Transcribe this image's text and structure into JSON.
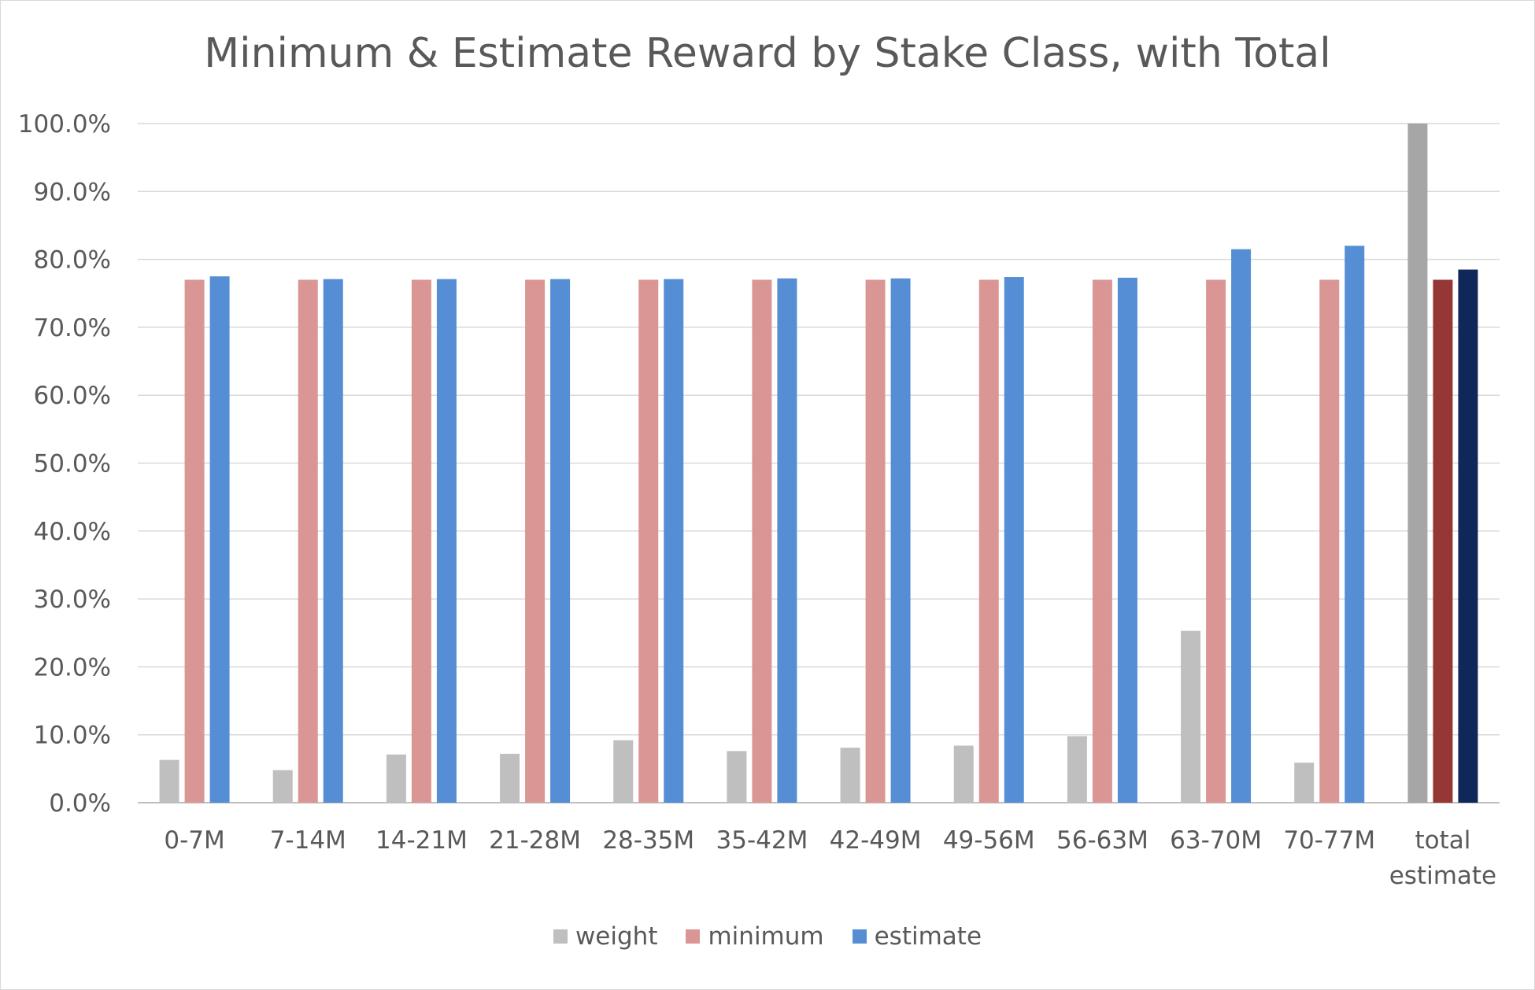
{
  "chart_data": {
    "type": "bar",
    "title": "Minimum & Estimate Reward by Stake Class, with Total",
    "xlabel": "",
    "ylabel": "",
    "ylim": [
      0,
      100
    ],
    "y_ticks": [
      "0.0%",
      "10.0%",
      "20.0%",
      "30.0%",
      "40.0%",
      "50.0%",
      "60.0%",
      "70.0%",
      "80.0%",
      "90.0%",
      "100.0%"
    ],
    "categories": [
      "0-7M",
      "7-14M",
      "14-21M",
      "21-28M",
      "28-35M",
      "35-42M",
      "42-49M",
      "49-56M",
      "56-63M",
      "63-70M",
      "70-77M",
      "total estimate"
    ],
    "category_lines": [
      [
        "0-7M"
      ],
      [
        "7-14M"
      ],
      [
        "14-21M"
      ],
      [
        "21-28M"
      ],
      [
        "28-35M"
      ],
      [
        "35-42M"
      ],
      [
        "42-49M"
      ],
      [
        "49-56M"
      ],
      [
        "56-63M"
      ],
      [
        "63-70M"
      ],
      [
        "70-77M"
      ],
      [
        "total",
        "estimate"
      ]
    ],
    "series": [
      {
        "name": "weight",
        "color": "#bfbfbf",
        "values": [
          6.3,
          4.8,
          7.1,
          7.2,
          9.2,
          7.6,
          8.1,
          8.4,
          9.8,
          25.3,
          5.9,
          100.0
        ]
      },
      {
        "name": "minimum",
        "color": "#da9694",
        "values": [
          77.0,
          77.0,
          77.0,
          77.0,
          77.0,
          77.0,
          77.0,
          77.0,
          77.0,
          77.0,
          77.0,
          77.0
        ]
      },
      {
        "name": "estimate",
        "color": "#558ed5",
        "values": [
          77.5,
          77.1,
          77.1,
          77.1,
          77.1,
          77.2,
          77.2,
          77.4,
          77.3,
          81.5,
          82.0,
          78.5
        ]
      }
    ],
    "total_colors": [
      "#a6a6a6",
      "#953735",
      "#10275a"
    ],
    "grid": true,
    "legend": "bottom"
  }
}
